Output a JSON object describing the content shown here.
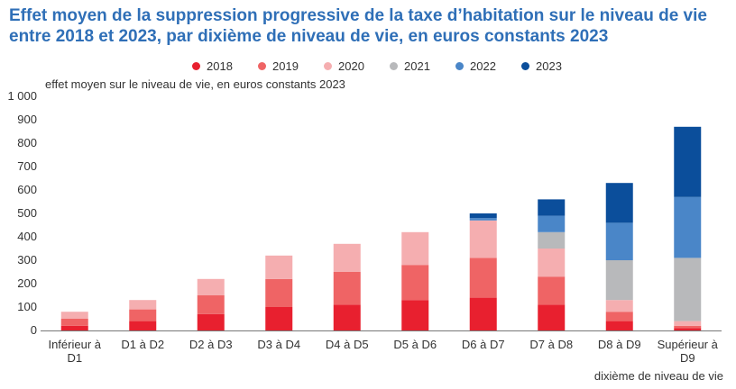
{
  "chart_data": {
    "type": "bar",
    "stacked": true,
    "title": "Effet moyen de la suppression progressive de la taxe d’habitation sur le niveau de vie entre 2018 et 2023, par dixième de niveau de vie, en euros constants 2023",
    "ylabel": "effet moyen sur le niveau de vie, en euros constants 2023",
    "xlabel": "dixième de niveau de vie",
    "ylim": [
      0,
      1000
    ],
    "yticks": [
      "0",
      "100",
      "200",
      "300",
      "400",
      "500",
      "600",
      "700",
      "800",
      "900",
      "1 000"
    ],
    "categories": [
      "Inférieur à D1",
      "D1 à D2",
      "D2 à D3",
      "D3 à D4",
      "D4 à D5",
      "D5 à D6",
      "D6 à D7",
      "D7 à D8",
      "D8 à D9",
      "Supérieur à D9"
    ],
    "category_lines": [
      [
        "Inférieur à",
        "D1"
      ],
      [
        "D1 à D2"
      ],
      [
        "D2 à D3"
      ],
      [
        "D3 à D4"
      ],
      [
        "D4 à D5"
      ],
      [
        "D5 à D6"
      ],
      [
        "D6 à D7"
      ],
      [
        "D7 à D8"
      ],
      [
        "D8 à D9"
      ],
      [
        "Supérieur à",
        "D9"
      ]
    ],
    "legend_position": "top",
    "grid": false,
    "series": [
      {
        "name": "2018",
        "color": "#e8202f",
        "values": [
          20,
          40,
          70,
          100,
          110,
          130,
          140,
          110,
          40,
          10
        ]
      },
      {
        "name": "2019",
        "color": "#ef6465",
        "values": [
          30,
          50,
          80,
          120,
          140,
          150,
          170,
          120,
          40,
          10
        ]
      },
      {
        "name": "2020",
        "color": "#f5aeb0",
        "values": [
          30,
          40,
          70,
          100,
          120,
          140,
          160,
          120,
          50,
          20
        ]
      },
      {
        "name": "2021",
        "color": "#b8b9bb",
        "values": [
          0,
          0,
          0,
          0,
          0,
          0,
          0,
          70,
          170,
          270
        ]
      },
      {
        "name": "2022",
        "color": "#4a86c8",
        "values": [
          0,
          0,
          0,
          0,
          0,
          0,
          10,
          70,
          160,
          260
        ]
      },
      {
        "name": "2023",
        "color": "#0b4e9b",
        "values": [
          0,
          0,
          0,
          0,
          0,
          0,
          20,
          70,
          170,
          300
        ]
      }
    ]
  }
}
